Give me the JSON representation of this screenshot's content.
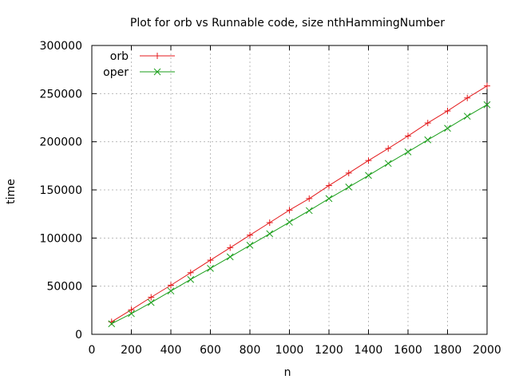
{
  "chart_data": {
    "type": "line",
    "title": "Plot for orb vs Runnable code, size nthHammingNumber",
    "xlabel": "n",
    "ylabel": "time",
    "xlim": [
      0,
      2000
    ],
    "ylim": [
      0,
      300000
    ],
    "x_ticks": [
      "0",
      "200",
      "400",
      "600",
      "800",
      "1000",
      "1200",
      "1400",
      "1600",
      "1800",
      "2000"
    ],
    "y_ticks": [
      "0",
      "50000",
      "100000",
      "150000",
      "200000",
      "250000",
      "300000"
    ],
    "grid": true,
    "legend_position": "top-left",
    "x": [
      100,
      200,
      300,
      400,
      500,
      600,
      700,
      800,
      900,
      1000,
      1100,
      1200,
      1300,
      1400,
      1500,
      1600,
      1700,
      1800,
      1900,
      2000
    ],
    "series": [
      {
        "name": "orb",
        "color": "#e41a1c",
        "marker": "plus",
        "values": [
          13000,
          25500,
          38500,
          51000,
          64000,
          77000,
          90000,
          103000,
          116000,
          129000,
          141000,
          154500,
          167500,
          180500,
          193000,
          206000,
          219500,
          232000,
          245500,
          258000
        ]
      },
      {
        "name": "oper",
        "color": "#1a9e1a",
        "marker": "cross",
        "values": [
          11000,
          21500,
          33000,
          45000,
          57000,
          68500,
          80500,
          92500,
          104500,
          116500,
          128500,
          141000,
          153000,
          165000,
          177500,
          189500,
          202000,
          214000,
          226500,
          238500
        ]
      }
    ]
  }
}
